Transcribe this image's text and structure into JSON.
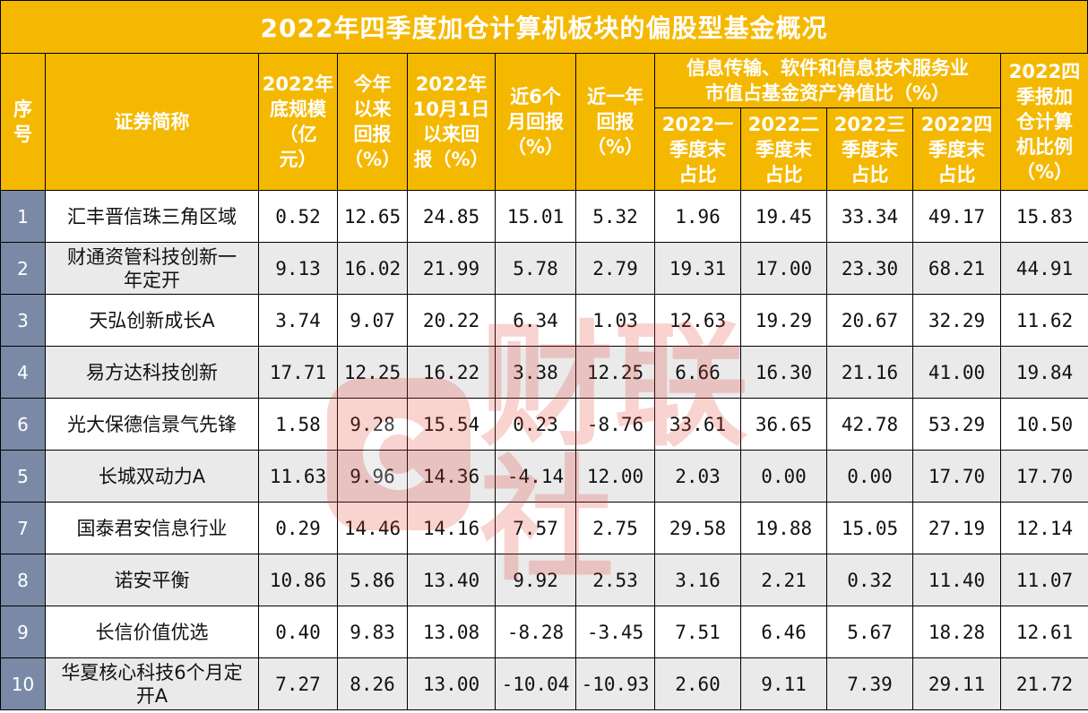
{
  "title": "2022年四季度加仓计算机板块的偏股型基金概况",
  "headers": {
    "seq": [
      "序",
      "号"
    ],
    "name": [
      "证券简称"
    ],
    "scale": [
      "2022年",
      "底规模",
      "（亿",
      "元）"
    ],
    "ytd": [
      "今年",
      "以来",
      "回报",
      "（%）"
    ],
    "since_oct": [
      "2022年",
      "10月1日",
      "以来回",
      "报（%）"
    ],
    "six_month": [
      "近6个",
      "月回报",
      "（%）"
    ],
    "one_year": [
      "近一年",
      "回报",
      "（%）"
    ],
    "group": [
      "信息传输、软件和信息技术服务业",
      "市值占基金资产净值比（%）"
    ],
    "q1": [
      "2022一",
      "季度末",
      "占比"
    ],
    "q2": [
      "2022二",
      "季度末",
      "占比"
    ],
    "q3": [
      "2022三",
      "季度末",
      "占比"
    ],
    "q4": [
      "2022四",
      "季度末",
      "占比"
    ],
    "q4_add": [
      "2022四",
      "季报加",
      "仓计算",
      "机比例",
      "（%）"
    ]
  },
  "rows": [
    {
      "seq": "1",
      "name": [
        "汇丰晋信珠三角区域"
      ],
      "scale": "0.52",
      "ytd": "12.65",
      "since_oct": "24.85",
      "six_month": "15.01",
      "one_year": "5.32",
      "q1": "1.96",
      "q2": "19.45",
      "q3": "33.34",
      "q4": "49.17",
      "q4_add": "15.83"
    },
    {
      "seq": "2",
      "name": [
        "财通资管科技创新一",
        "年定开"
      ],
      "scale": "9.13",
      "ytd": "16.02",
      "since_oct": "21.99",
      "six_month": "5.78",
      "one_year": "2.79",
      "q1": "19.31",
      "q2": "17.00",
      "q3": "23.30",
      "q4": "68.21",
      "q4_add": "44.91"
    },
    {
      "seq": "3",
      "name": [
        "天弘创新成长A"
      ],
      "scale": "3.74",
      "ytd": "9.07",
      "since_oct": "20.22",
      "six_month": "6.34",
      "one_year": "1.03",
      "q1": "12.63",
      "q2": "19.29",
      "q3": "20.67",
      "q4": "32.29",
      "q4_add": "11.62"
    },
    {
      "seq": "4",
      "name": [
        "易方达科技创新"
      ],
      "scale": "17.71",
      "ytd": "12.25",
      "since_oct": "16.22",
      "six_month": "3.38",
      "one_year": "12.25",
      "q1": "6.66",
      "q2": "16.30",
      "q3": "21.16",
      "q4": "41.00",
      "q4_add": "19.84"
    },
    {
      "seq": "6",
      "name": [
        "光大保德信景气先锋"
      ],
      "scale": "1.58",
      "ytd": "9.28",
      "since_oct": "15.54",
      "six_month": "0.23",
      "one_year": "-8.76",
      "q1": "33.61",
      "q2": "36.65",
      "q3": "42.78",
      "q4": "53.29",
      "q4_add": "10.50"
    },
    {
      "seq": "5",
      "name": [
        "长城双动力A"
      ],
      "scale": "11.63",
      "ytd": "9.96",
      "since_oct": "14.36",
      "six_month": "-4.14",
      "one_year": "12.00",
      "q1": "2.03",
      "q2": "0.00",
      "q3": "0.00",
      "q4": "17.70",
      "q4_add": "17.70"
    },
    {
      "seq": "7",
      "name": [
        "国泰君安信息行业"
      ],
      "scale": "0.29",
      "ytd": "14.46",
      "since_oct": "14.16",
      "six_month": "7.57",
      "one_year": "2.75",
      "q1": "29.58",
      "q2": "19.88",
      "q3": "15.05",
      "q4": "27.19",
      "q4_add": "12.14"
    },
    {
      "seq": "8",
      "name": [
        "诺安平衡"
      ],
      "scale": "10.86",
      "ytd": "5.86",
      "since_oct": "13.40",
      "six_month": "9.92",
      "one_year": "2.53",
      "q1": "3.16",
      "q2": "2.21",
      "q3": "0.32",
      "q4": "11.40",
      "q4_add": "11.07"
    },
    {
      "seq": "9",
      "name": [
        "长信价值优选"
      ],
      "scale": "0.40",
      "ytd": "9.83",
      "since_oct": "13.08",
      "six_month": "-8.28",
      "one_year": "-3.45",
      "q1": "7.51",
      "q2": "6.46",
      "q3": "5.67",
      "q4": "18.28",
      "q4_add": "12.61"
    },
    {
      "seq": "10",
      "name": [
        "华夏核心科技6个月定",
        "开A"
      ],
      "scale": "7.27",
      "ytd": "8.26",
      "since_oct": "13.00",
      "six_month": "-10.04",
      "one_year": "-10.93",
      "q1": "2.60",
      "q2": "9.11",
      "q3": "7.39",
      "q4": "29.11",
      "q4_add": "21.72"
    }
  ],
  "watermark": {
    "text": "财联社",
    "logo": "cailianshe-logo-icon"
  },
  "colors": {
    "header_bg": "#f5b800",
    "seq_bg": "#7a8aa6",
    "stripe": "#eaeaea",
    "watermark": "#e23a2e"
  }
}
